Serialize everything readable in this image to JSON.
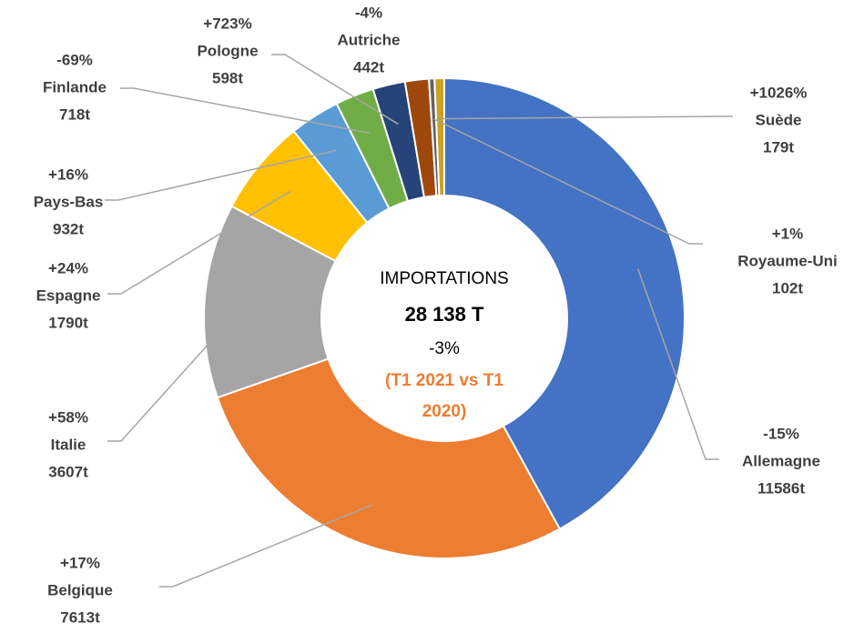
{
  "chart_data": {
    "type": "donut",
    "categories": [
      "Allemagne",
      "Belgique",
      "Italie",
      "Espagne",
      "Pays-Bas",
      "Finlande",
      "Pologne",
      "Autriche",
      "Royaume-Uni",
      "Suède"
    ],
    "values": [
      11586,
      7613,
      3607,
      1790,
      932,
      718,
      598,
      442,
      102,
      179
    ],
    "value_labels": [
      "11586t",
      "7613t",
      "3607t",
      "1790t",
      "932t",
      "718t",
      "598t",
      "442t",
      "102t",
      "179t"
    ],
    "change_labels": [
      "-15%",
      "+17%",
      "+58%",
      "+24%",
      "+16%",
      "-69%",
      "+723%",
      "-4%",
      "+1%",
      "+1026%"
    ],
    "colors": [
      "#4472c4",
      "#ed7d31",
      "#a5a5a5",
      "#ffc000",
      "#5b9bd5",
      "#70ad47",
      "#264478",
      "#9e480e",
      "#636363",
      "#c9a227"
    ],
    "center": {
      "title": "IMPORTATIONS",
      "total": "28 138 T",
      "change": "-3%",
      "period": [
        "(T1 2021 vs T1",
        "2020)"
      ]
    }
  }
}
